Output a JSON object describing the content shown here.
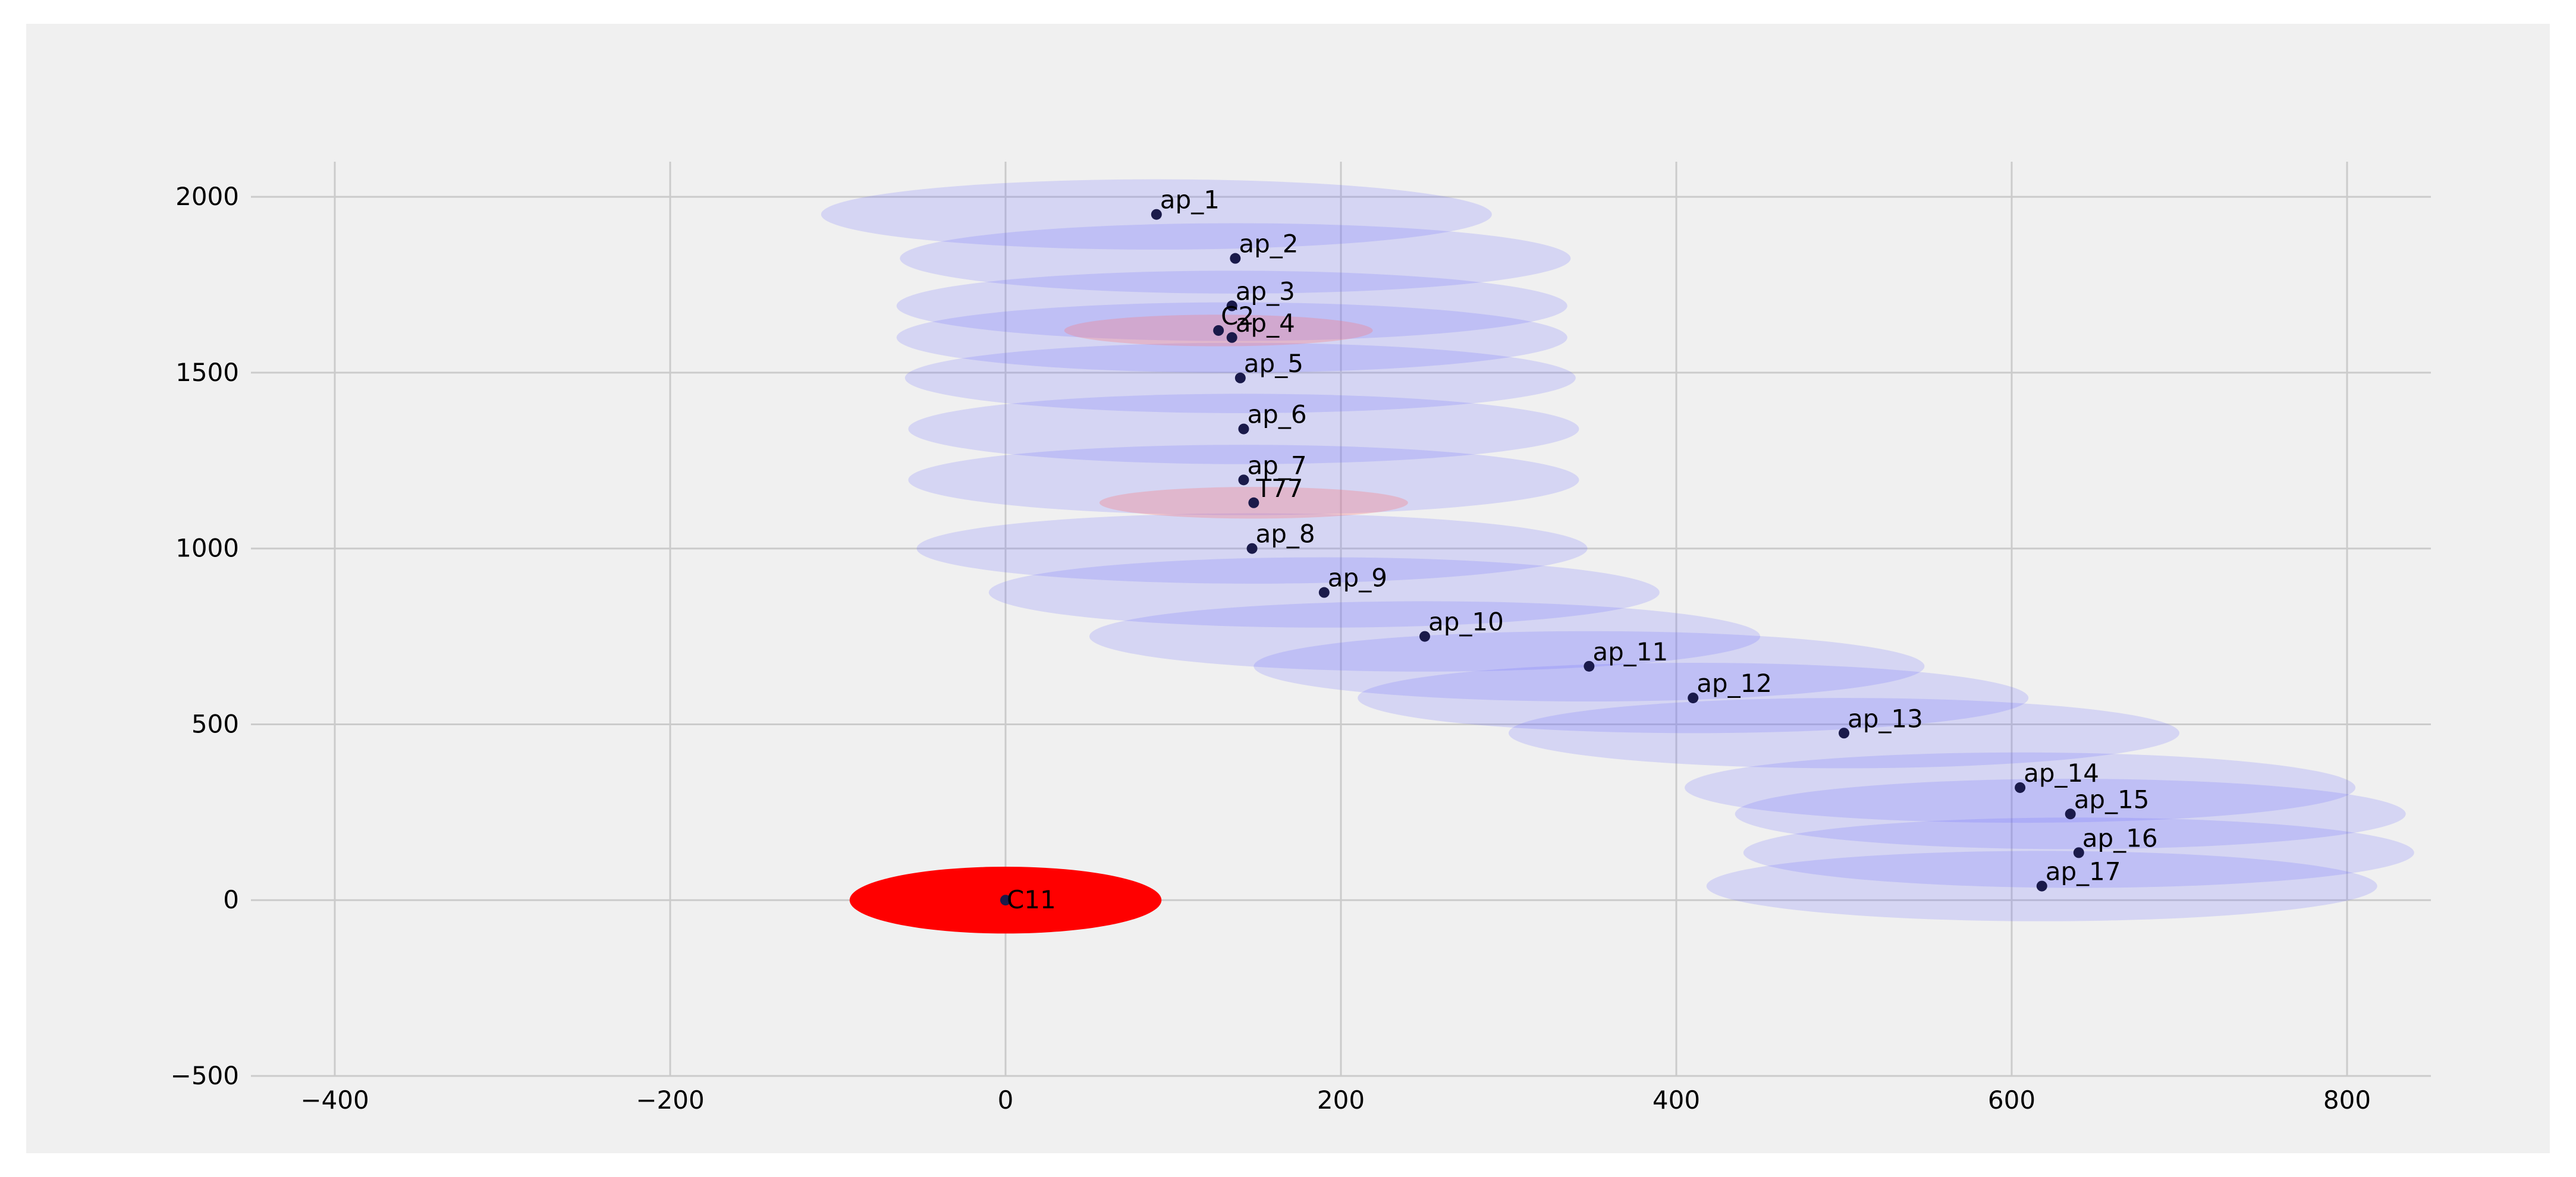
{
  "chart_data": {
    "type": "scatter",
    "title": "",
    "xlabel": "",
    "ylabel": "",
    "xlim": [
      -450,
      850
    ],
    "ylim": [
      -500,
      2100
    ],
    "x_ticks": [
      -400,
      -200,
      0,
      200,
      400,
      600,
      800
    ],
    "y_ticks": [
      -500,
      0,
      500,
      1000,
      1500,
      2000
    ],
    "x_tick_labels": [
      "−400",
      "−200",
      "0",
      "200",
      "400",
      "600",
      "800"
    ],
    "y_tick_labels": [
      "−500",
      "0",
      "500",
      "1000",
      "1500",
      "2000"
    ],
    "grid": true,
    "colors": {
      "background": "#f0f0f0",
      "grid": "#cbcbcb",
      "ap_ellipse_fill": "#6b6bff",
      "highlight_ellipse_fill": "#ff6b6b",
      "origin_ellipse_fill": "#ff0000",
      "point": "#1a1a4a"
    },
    "ellipse_rx_units": 200,
    "ellipse_ry_units": 100,
    "access_points": [
      {
        "label": "ap_1",
        "x": 90,
        "y": 1950
      },
      {
        "label": "ap_2",
        "x": 137,
        "y": 1825
      },
      {
        "label": "ap_3",
        "x": 135,
        "y": 1690
      },
      {
        "label": "ap_4",
        "x": 135,
        "y": 1600
      },
      {
        "label": "ap_5",
        "x": 140,
        "y": 1485
      },
      {
        "label": "ap_6",
        "x": 142,
        "y": 1340
      },
      {
        "label": "ap_7",
        "x": 142,
        "y": 1195
      },
      {
        "label": "ap_8",
        "x": 147,
        "y": 1000
      },
      {
        "label": "ap_9",
        "x": 190,
        "y": 875
      },
      {
        "label": "ap_10",
        "x": 250,
        "y": 750
      },
      {
        "label": "ap_11",
        "x": 348,
        "y": 665
      },
      {
        "label": "ap_12",
        "x": 410,
        "y": 575
      },
      {
        "label": "ap_13",
        "x": 500,
        "y": 475
      },
      {
        "label": "ap_14",
        "x": 605,
        "y": 320
      },
      {
        "label": "ap_15",
        "x": 635,
        "y": 245
      },
      {
        "label": "ap_16",
        "x": 640,
        "y": 135
      },
      {
        "label": "ap_17",
        "x": 618,
        "y": 40
      }
    ],
    "highlights": [
      {
        "label": "C2",
        "x": 127,
        "y": 1620,
        "rx_units": 92,
        "ry_units": 45
      },
      {
        "label": "T77",
        "x": 148,
        "y": 1130,
        "rx_units": 92,
        "ry_units": 45
      }
    ],
    "origin": {
      "label": "C11",
      "x": 0,
      "y": 0,
      "rx_units": 93,
      "ry_units": 95
    }
  }
}
